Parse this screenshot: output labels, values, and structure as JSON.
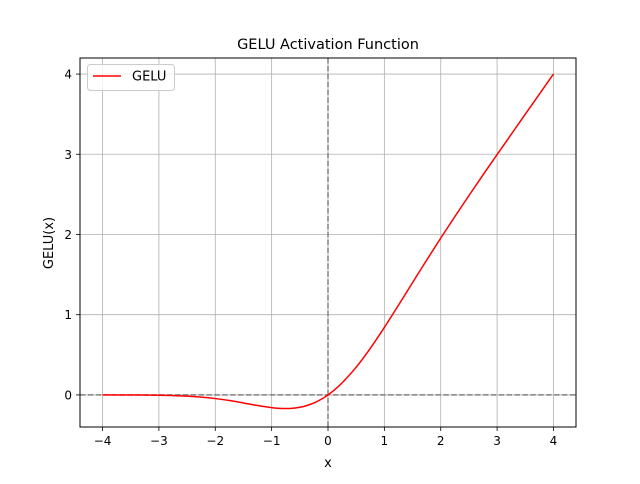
{
  "chart_data": {
    "type": "line",
    "title": "GELU Activation Function",
    "xlabel": "x",
    "ylabel": "GELU(x)",
    "xlim": [
      -4.4,
      4.4
    ],
    "ylim": [
      -0.4,
      4.2
    ],
    "x_ticks": [
      -4,
      -3,
      -2,
      -1,
      0,
      1,
      2,
      3,
      4
    ],
    "x_tick_labels": [
      "−4",
      "−3",
      "−2",
      "−1",
      "0",
      "1",
      "2",
      "3",
      "4"
    ],
    "y_ticks": [
      0,
      1,
      2,
      3,
      4
    ],
    "y_tick_labels": [
      "0",
      "1",
      "2",
      "3",
      "4"
    ],
    "grid": true,
    "legend": {
      "placement": "top-left",
      "entries": [
        "GELU"
      ]
    },
    "reference_lines": [
      {
        "orientation": "horizontal",
        "value": 0,
        "style": "dashed",
        "color": "#808080"
      },
      {
        "orientation": "vertical",
        "value": 0,
        "style": "dashed",
        "color": "#808080"
      }
    ],
    "series": [
      {
        "name": "GELU",
        "color": "#ff0000",
        "x": [
          -4.0,
          -3.5,
          -3.0,
          -2.75,
          -2.5,
          -2.25,
          -2.0,
          -1.75,
          -1.5,
          -1.25,
          -1.0,
          -0.9,
          -0.75,
          -0.6,
          -0.5,
          -0.4,
          -0.25,
          -0.1,
          0.0,
          0.1,
          0.25,
          0.5,
          0.75,
          1.0,
          1.25,
          1.5,
          1.75,
          2.0,
          2.25,
          2.5,
          2.75,
          3.0,
          3.5,
          4.0
        ],
        "values": [
          -0.0001,
          -0.0008,
          -0.004,
          -0.0082,
          -0.0155,
          -0.0275,
          -0.0455,
          -0.0702,
          -0.1002,
          -0.1321,
          -0.1587,
          -0.1657,
          -0.17,
          -0.1646,
          -0.1543,
          -0.1379,
          -0.1003,
          -0.046,
          0.0,
          0.054,
          0.1497,
          0.3457,
          0.58,
          0.8413,
          1.1179,
          1.3998,
          1.6798,
          1.9545,
          2.2225,
          2.4845,
          2.7418,
          2.996,
          3.4992,
          3.9999
        ]
      }
    ]
  }
}
